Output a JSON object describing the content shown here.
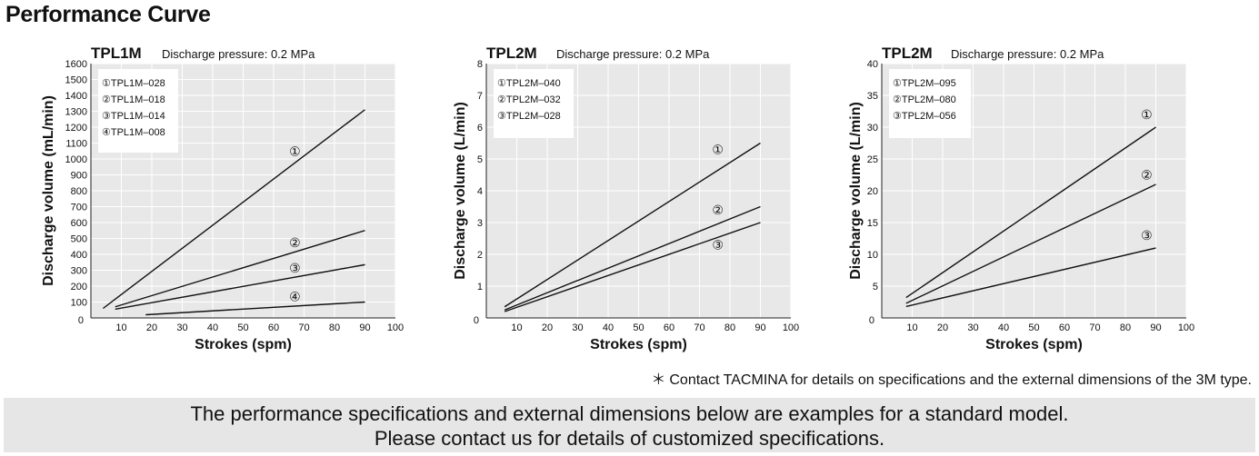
{
  "page_title": "Performance Curve",
  "footnote": {
    "mark": "＊",
    "text": "Contact TACMINA for details on specifications and the external dimensions of the 3M type."
  },
  "banner": {
    "line1": "The performance specifications and external dimensions below are examples for a standard model.",
    "line2": "Please contact us for details of customized specifications."
  },
  "chart_data": [
    {
      "type": "line",
      "model": "TPL1M",
      "subtitle": "Discharge pressure: 0.2 MPa",
      "xlabel": "Strokes (spm)",
      "ylabel": "Discharge volume (mL/min)",
      "xlim": [
        0,
        100
      ],
      "ylim": [
        0,
        1600
      ],
      "xticks": [
        10,
        20,
        30,
        40,
        50,
        60,
        70,
        80,
        90,
        100
      ],
      "yticks": [
        0,
        100,
        200,
        300,
        400,
        500,
        600,
        700,
        800,
        900,
        1000,
        1100,
        1200,
        1300,
        1400,
        1500,
        1600
      ],
      "grid": true,
      "legend_position": "top-left",
      "series": [
        {
          "marker": "①",
          "name": "TPL1M–028",
          "x": [
            4,
            90
          ],
          "y": [
            60,
            1310
          ],
          "label_at": [
            67,
            1050
          ]
        },
        {
          "marker": "②",
          "name": "TPL1M–018",
          "x": [
            8,
            90
          ],
          "y": [
            70,
            550
          ],
          "label_at": [
            67,
            475
          ]
        },
        {
          "marker": "③",
          "name": "TPL1M–014",
          "x": [
            8,
            90
          ],
          "y": [
            55,
            335
          ],
          "label_at": [
            67,
            315
          ]
        },
        {
          "marker": "④",
          "name": "TPL1M–008",
          "x": [
            18,
            90
          ],
          "y": [
            20,
            100
          ],
          "label_at": [
            67,
            135
          ]
        }
      ]
    },
    {
      "type": "line",
      "model": "TPL2M",
      "subtitle": "Discharge pressure: 0.2 MPa",
      "xlabel": "Strokes (spm)",
      "ylabel": "Discharge volume (L/min)",
      "xlim": [
        0,
        100
      ],
      "ylim": [
        0,
        8
      ],
      "xticks": [
        10,
        20,
        30,
        40,
        50,
        60,
        70,
        80,
        90,
        100
      ],
      "yticks": [
        0,
        1,
        2,
        3,
        4,
        5,
        6,
        7,
        8
      ],
      "grid": true,
      "legend_position": "top-left",
      "series": [
        {
          "marker": "①",
          "name": "TPL2M–040",
          "x": [
            6,
            90
          ],
          "y": [
            0.35,
            5.5
          ],
          "label_at": [
            76,
            5.3
          ]
        },
        {
          "marker": "②",
          "name": "TPL2M–032",
          "x": [
            6,
            90
          ],
          "y": [
            0.25,
            3.5
          ],
          "label_at": [
            76,
            3.4
          ]
        },
        {
          "marker": "③",
          "name": "TPL2M–028",
          "x": [
            6,
            90
          ],
          "y": [
            0.2,
            3.0
          ],
          "label_at": [
            76,
            2.3
          ]
        }
      ]
    },
    {
      "type": "line",
      "model": "TPL2M",
      "subtitle": "Discharge pressure: 0.2 MPa",
      "xlabel": "Strokes (spm)",
      "ylabel": "Discharge volume (L/min)",
      "xlim": [
        0,
        100
      ],
      "ylim": [
        0,
        40
      ],
      "xticks": [
        10,
        20,
        30,
        40,
        50,
        60,
        70,
        80,
        90,
        100
      ],
      "yticks": [
        0,
        5,
        10,
        15,
        20,
        25,
        30,
        35,
        40
      ],
      "grid": true,
      "legend_position": "top-left",
      "series": [
        {
          "marker": "①",
          "name": "TPL2M–095",
          "x": [
            8,
            90
          ],
          "y": [
            3.2,
            30
          ],
          "label_at": [
            87,
            32
          ]
        },
        {
          "marker": "②",
          "name": "TPL2M–080",
          "x": [
            8,
            90
          ],
          "y": [
            2.3,
            21
          ],
          "label_at": [
            87,
            22.5
          ]
        },
        {
          "marker": "③",
          "name": "TPL2M–056",
          "x": [
            8,
            90
          ],
          "y": [
            1.8,
            11
          ],
          "label_at": [
            87,
            13
          ]
        }
      ]
    }
  ]
}
